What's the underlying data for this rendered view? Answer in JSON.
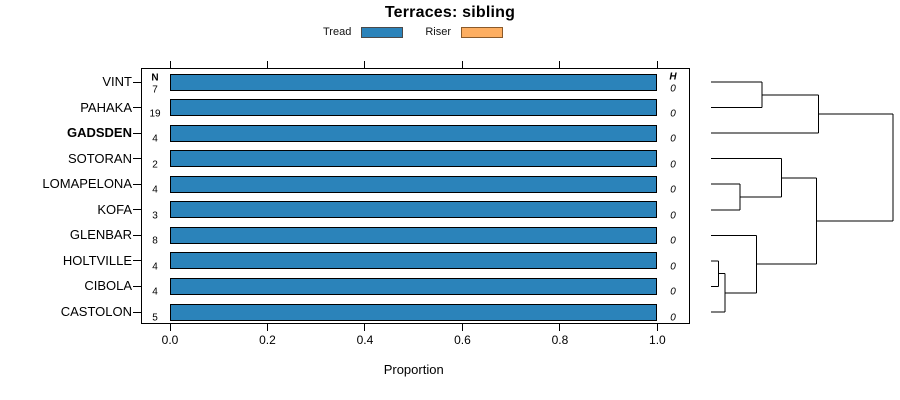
{
  "title": "Terraces: sibling",
  "legend": {
    "items": [
      {
        "label": "Tread",
        "color": "#2B83BA",
        "border": "#4a4a4a"
      },
      {
        "label": "Riser",
        "color": "#FDAE61",
        "border": "#8a5a2a"
      }
    ]
  },
  "chart_data": {
    "type": "bar",
    "orientation": "horizontal",
    "stacked": true,
    "title": "Terraces: sibling",
    "xlabel": "Proportion",
    "xlim": [
      0,
      1
    ],
    "xticks": [
      "0.0",
      "0.2",
      "0.4",
      "0.6",
      "0.8",
      "1.0"
    ],
    "xtick_values": [
      0.0,
      0.2,
      0.4,
      0.6,
      0.8,
      1.0
    ],
    "grid": false,
    "legend_position": "top",
    "categories": [
      "VINT",
      "PAHAKA",
      "GADSDEN",
      "SOTORAN",
      "LOMAPELONA",
      "KOFA",
      "GLENBAR",
      "HOLTVILLE",
      "CIBOLA",
      "CASTOLON"
    ],
    "bold_category": "GADSDEN",
    "series": [
      {
        "name": "Tread",
        "color": "#2B83BA",
        "values": [
          1.0,
          1.0,
          1.0,
          1.0,
          1.0,
          1.0,
          1.0,
          1.0,
          1.0,
          1.0
        ]
      },
      {
        "name": "Riser",
        "color": "#FDAE61",
        "values": [
          0,
          0,
          0,
          0,
          0,
          0,
          0,
          0,
          0,
          0
        ]
      }
    ],
    "columns": {
      "n": {
        "header": "N",
        "values": [
          7,
          19,
          4,
          2,
          4,
          3,
          8,
          4,
          4,
          5
        ]
      },
      "h": {
        "header": "H",
        "values": [
          0,
          0,
          0,
          0,
          0,
          0,
          0,
          0,
          0,
          0
        ]
      }
    },
    "dendrogram": {
      "side": "right",
      "leaves": [
        "VINT",
        "PAHAKA",
        "GADSDEN",
        "SOTORAN",
        "LOMAPELONA",
        "KOFA",
        "GLENBAR",
        "HOLTVILLE",
        "CIBOLA",
        "CASTOLON"
      ],
      "merges": [
        {
          "id": "M1",
          "a": "L7",
          "b": "L8",
          "h": 0.04
        },
        {
          "id": "M2",
          "a": "M1",
          "b": "L9",
          "h": 0.077
        },
        {
          "id": "M3",
          "a": "L4",
          "b": "L5",
          "h": 0.159
        },
        {
          "id": "M4",
          "a": "L6",
          "b": "M2",
          "h": 0.251
        },
        {
          "id": "M5",
          "a": "L0",
          "b": "L1",
          "h": 0.279
        },
        {
          "id": "M6",
          "a": "L3",
          "b": "M3",
          "h": 0.388
        },
        {
          "id": "M7",
          "a": "M6",
          "b": "M4",
          "h": 0.581
        },
        {
          "id": "M8",
          "a": "M5",
          "b": "L2",
          "h": 0.59
        },
        {
          "id": "M9",
          "a": "M8",
          "b": "M7",
          "h": 1.0
        }
      ]
    },
    "colors": {
      "bar_border": "#000000",
      "box_border": "#000000",
      "dendro_line": "#000000",
      "text": "#000000"
    }
  }
}
